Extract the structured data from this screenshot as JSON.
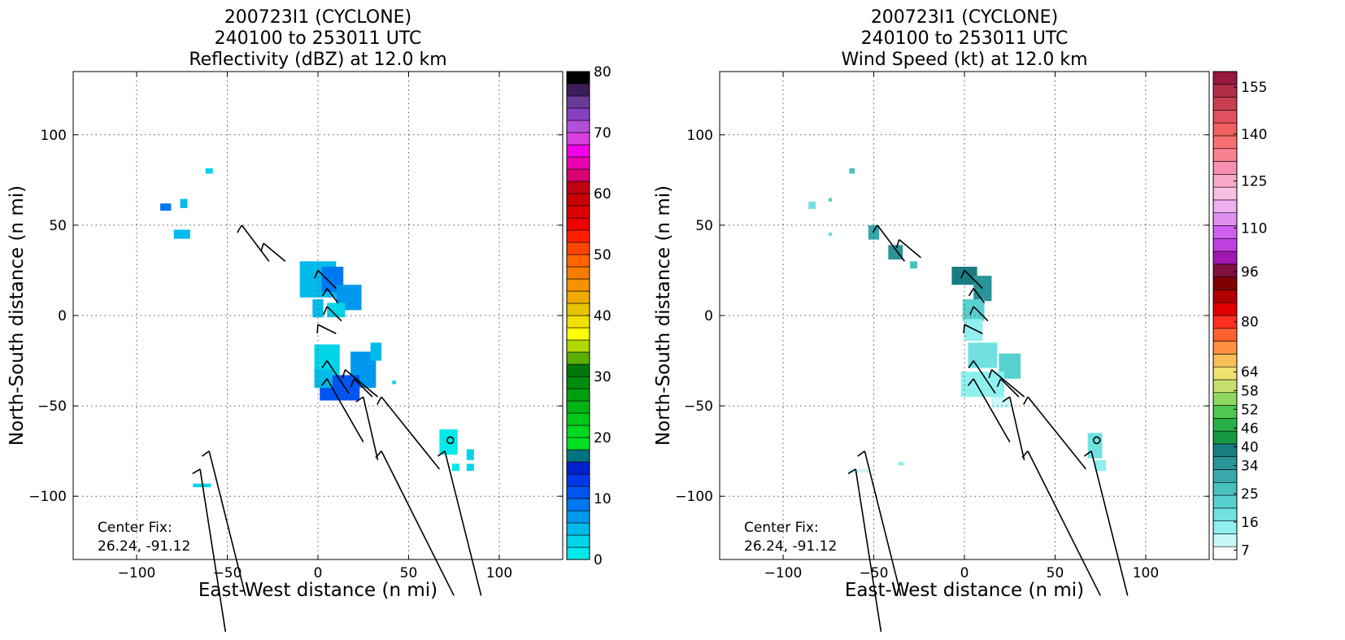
{
  "chart_data": [
    {
      "type": "heatmap",
      "title": [
        "200723I1 (CYCLONE)",
        "240100 to 253011 UTC",
        "Reflectivity (dBZ) at 12.0 km"
      ],
      "xlabel": "East-West distance (n mi)",
      "ylabel": "North-South distance (n mi)",
      "xlim": [
        -135,
        135
      ],
      "ylim": [
        -135,
        135
      ],
      "xticks": [
        -100,
        -50,
        0,
        50,
        100
      ],
      "yticks": [
        100,
        50,
        0,
        -50,
        -100
      ],
      "xtick_labels": [
        "−100",
        "−50",
        "0",
        "50",
        "100"
      ],
      "ytick_labels": [
        "100",
        "50",
        "0",
        "−50",
        "−100"
      ],
      "grid": true,
      "annotation": [
        "Center Fix:",
        "26.24, -91.12"
      ],
      "center_fix_marker": [
        73,
        -69
      ],
      "colorbar": {
        "min": 0,
        "max": 80,
        "tick_values": [
          0,
          10,
          20,
          30,
          40,
          50,
          60,
          70,
          80
        ],
        "tick_labels": [
          "0",
          "10",
          "20",
          "30",
          "40",
          "50",
          "60",
          "70",
          "80"
        ],
        "colors": [
          "#00eaea",
          "#00d5e8",
          "#00baea",
          "#0098ee",
          "#0078f2",
          "#0055f0",
          "#0038e8",
          "#0022cc",
          "#007480",
          "#00e020",
          "#00d820",
          "#00c818",
          "#00b414",
          "#00a010",
          "#008c0c",
          "#00780a",
          "#5ab000",
          "#b0d800",
          "#ffff00",
          "#f0e000",
          "#e6c400",
          "#eeaa00",
          "#f49200",
          "#f67c00",
          "#ff6400",
          "#ff4400",
          "#ff1e00",
          "#f00000",
          "#dc0000",
          "#c80000",
          "#be0010",
          "#d80070",
          "#ea00b0",
          "#f000e8",
          "#d840e0",
          "#b050d8",
          "#8840c0",
          "#6a3a98",
          "#3c1e5a",
          "#000000"
        ]
      },
      "field": [
        {
          "x": -60,
          "y": 80,
          "w": 4,
          "h": 3,
          "c": "#00d5e8"
        },
        {
          "x": -84,
          "y": 60,
          "w": 6,
          "h": 4,
          "c": "#0078f2"
        },
        {
          "x": -74,
          "y": 62,
          "w": 4,
          "h": 5,
          "c": "#00baea"
        },
        {
          "x": -75,
          "y": 45,
          "w": 9,
          "h": 5,
          "c": "#00baea"
        },
        {
          "x": 0,
          "y": 20,
          "w": 20,
          "h": 20,
          "c": "#00baea"
        },
        {
          "x": 8,
          "y": 20,
          "w": 12,
          "h": 14,
          "c": "#0078f2"
        },
        {
          "x": 17,
          "y": 10,
          "w": 14,
          "h": 14,
          "c": "#0098ee"
        },
        {
          "x": 0,
          "y": 4,
          "w": 6,
          "h": 10,
          "c": "#00baea"
        },
        {
          "x": 10,
          "y": 3,
          "w": 10,
          "h": 8,
          "c": "#00d5e8"
        },
        {
          "x": 5,
          "y": -25,
          "w": 14,
          "h": 18,
          "c": "#00d5e8"
        },
        {
          "x": 25,
          "y": -30,
          "w": 14,
          "h": 20,
          "c": "#0098ee"
        },
        {
          "x": 12,
          "y": -40,
          "w": 22,
          "h": 14,
          "c": "#0055f0"
        },
        {
          "x": 3,
          "y": -35,
          "w": 10,
          "h": 10,
          "c": "#00baea"
        },
        {
          "x": 32,
          "y": -20,
          "w": 6,
          "h": 10,
          "c": "#00baea"
        },
        {
          "x": 42,
          "y": -37,
          "w": 2,
          "h": 2,
          "c": "#00d5e8"
        },
        {
          "x": 72,
          "y": -70,
          "w": 10,
          "h": 14,
          "c": "#00eaea"
        },
        {
          "x": 84,
          "y": -77,
          "w": 4,
          "h": 6,
          "c": "#00d5e8"
        },
        {
          "x": 84,
          "y": -84,
          "w": 4,
          "h": 4,
          "c": "#00d5e8"
        },
        {
          "x": 76,
          "y": -84,
          "w": 4,
          "h": 4,
          "c": "#00eaea"
        },
        {
          "x": -64,
          "y": -94,
          "w": 10,
          "h": 2,
          "c": "#00d5e8"
        }
      ],
      "barbs": [
        [
          -42,
          50,
          15,
          -20
        ],
        [
          -30,
          40,
          12,
          -10
        ],
        [
          0,
          25,
          10,
          -10
        ],
        [
          5,
          15,
          6,
          -8
        ],
        [
          5,
          5,
          8,
          -8
        ],
        [
          0,
          -5,
          10,
          -5
        ],
        [
          5,
          -25,
          12,
          -18
        ],
        [
          15,
          -30,
          18,
          -15
        ],
        [
          20,
          -35,
          10,
          -10
        ],
        [
          5,
          -35,
          20,
          -35
        ],
        [
          25,
          -45,
          8,
          -35
        ],
        [
          35,
          -45,
          32,
          -40
        ],
        [
          -60,
          -75,
          20,
          -80
        ],
        [
          -65,
          -85,
          14,
          -90
        ],
        [
          35,
          -75,
          40,
          -80
        ],
        [
          70,
          -75,
          20,
          -80
        ]
      ]
    },
    {
      "type": "heatmap",
      "title": [
        "200723I1 (CYCLONE)",
        "240100 to 253011 UTC",
        "Wind Speed (kt) at 12.0 km"
      ],
      "xlabel": "East-West distance (n mi)",
      "ylabel": "North-South distance (n mi)",
      "xlim": [
        -135,
        135
      ],
      "ylim": [
        -135,
        135
      ],
      "xticks": [
        -100,
        -50,
        0,
        50,
        100
      ],
      "yticks": [
        100,
        50,
        0,
        -50,
        -100
      ],
      "xtick_labels": [
        "−100",
        "−50",
        "0",
        "50",
        "100"
      ],
      "ytick_labels": [
        "100",
        "50",
        "0",
        "−50",
        "−100"
      ],
      "grid": true,
      "annotation": [
        "Center Fix:",
        "26.24, -91.12"
      ],
      "center_fix_marker": [
        73,
        -69
      ],
      "colorbar": {
        "min": 4,
        "max": 160,
        "tick_values": [
          7,
          16,
          25,
          34,
          40,
          46,
          52,
          58,
          64,
          80,
          96,
          110,
          125,
          140,
          155
        ],
        "tick_labels": [
          "7",
          "16",
          "25",
          "34",
          "40",
          "46",
          "52",
          "58",
          "64",
          "80",
          "96",
          "110",
          "125",
          "140",
          "155"
        ],
        "colors": [
          "#ffffff",
          "#c8f8f8",
          "#90f0f0",
          "#70e0e0",
          "#58d0d0",
          "#48c0c0",
          "#38a8ac",
          "#2a9498",
          "#1a7c80",
          "#189840",
          "#28b048",
          "#50c850",
          "#90d860",
          "#c8e070",
          "#f0e070",
          "#f8c058",
          "#ff9040",
          "#ff6030",
          "#ff3020",
          "#e00000",
          "#b00000",
          "#800000",
          "#801040",
          "#a018b0",
          "#c040e0",
          "#d060f0",
          "#e090f0",
          "#f0b0f0",
          "#f8c0e0",
          "#f8a8c8",
          "#f890b0",
          "#f88090",
          "#f87070",
          "#f06060",
          "#e05060",
          "#c84050",
          "#b03048",
          "#981840"
        ]
      },
      "field": [
        {
          "x": -62,
          "y": 80,
          "w": 3,
          "h": 3,
          "c": "#48c0c0"
        },
        {
          "x": -84,
          "y": 61,
          "w": 4,
          "h": 4,
          "c": "#70e0e0"
        },
        {
          "x": -74,
          "y": 64,
          "w": 2,
          "h": 2,
          "c": "#58d0d0"
        },
        {
          "x": -74,
          "y": 45,
          "w": 2,
          "h": 2,
          "c": "#70e0e0"
        },
        {
          "x": -50,
          "y": 46,
          "w": 6,
          "h": 8,
          "c": "#38a8ac"
        },
        {
          "x": -38,
          "y": 35,
          "w": 8,
          "h": 8,
          "c": "#2a9498"
        },
        {
          "x": -28,
          "y": 28,
          "w": 4,
          "h": 4,
          "c": "#48c0c0"
        },
        {
          "x": 0,
          "y": 22,
          "w": 14,
          "h": 10,
          "c": "#1a7c80"
        },
        {
          "x": 10,
          "y": 15,
          "w": 10,
          "h": 14,
          "c": "#2a9498"
        },
        {
          "x": 5,
          "y": 3,
          "w": 12,
          "h": 12,
          "c": "#58d0d0"
        },
        {
          "x": 5,
          "y": -8,
          "w": 10,
          "h": 12,
          "c": "#90f0f0"
        },
        {
          "x": 10,
          "y": -22,
          "w": 16,
          "h": 14,
          "c": "#70e0e0"
        },
        {
          "x": 25,
          "y": -28,
          "w": 12,
          "h": 14,
          "c": "#58d0d0"
        },
        {
          "x": 10,
          "y": -38,
          "w": 24,
          "h": 14,
          "c": "#90f0f0"
        },
        {
          "x": 20,
          "y": -48,
          "w": 10,
          "h": 6,
          "c": "#c8f8f8"
        },
        {
          "x": 72,
          "y": -72,
          "w": 8,
          "h": 14,
          "c": "#70e0e0"
        },
        {
          "x": 75,
          "y": -83,
          "w": 6,
          "h": 6,
          "c": "#90f0f0"
        },
        {
          "x": -58,
          "y": -86,
          "w": 12,
          "h": 2,
          "c": "#c8f8f8"
        },
        {
          "x": -35,
          "y": -82,
          "w": 3,
          "h": 2,
          "c": "#90f0f0"
        }
      ],
      "barbs": [
        [
          -48,
          50,
          15,
          -20
        ],
        [
          -36,
          42,
          12,
          -10
        ],
        [
          0,
          25,
          10,
          -10
        ],
        [
          5,
          15,
          6,
          -8
        ],
        [
          5,
          5,
          8,
          -8
        ],
        [
          0,
          -5,
          10,
          -5
        ],
        [
          5,
          -25,
          12,
          -18
        ],
        [
          15,
          -30,
          18,
          -15
        ],
        [
          20,
          -35,
          10,
          -10
        ],
        [
          5,
          -35,
          20,
          -35
        ],
        [
          25,
          -45,
          8,
          -35
        ],
        [
          35,
          -45,
          32,
          -40
        ],
        [
          -55,
          -75,
          20,
          -80
        ],
        [
          -60,
          -85,
          14,
          -90
        ],
        [
          35,
          -75,
          40,
          -80
        ],
        [
          70,
          -75,
          20,
          -80
        ]
      ]
    }
  ]
}
